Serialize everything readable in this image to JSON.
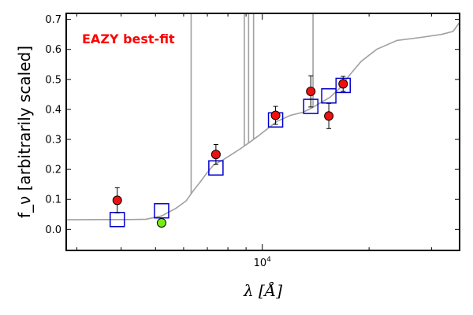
{
  "chart_data": {
    "type": "scatter",
    "title": "",
    "xlabel": "λ [Å]",
    "ylabel": "f_ν [arbitrarily scaled]",
    "xscale": "log",
    "xlim": [
      2800,
      36000
    ],
    "ylim": [
      -0.07,
      0.72
    ],
    "yticks": [
      0.0,
      0.1,
      0.2,
      0.3,
      0.4,
      0.5,
      0.6,
      0.7
    ],
    "ytick_labels": [
      "0.0",
      "0.1",
      "0.2",
      "0.3",
      "0.4",
      "0.5",
      "0.6",
      "0.7"
    ],
    "xtick_label": {
      "value": 10000,
      "label": "10",
      "exponent": "4"
    },
    "annotation": {
      "text": "EAZY best-fit",
      "color": "#ff0000"
    },
    "colors": {
      "template": "#a0a0a0",
      "model_box": "#0000cc",
      "observed": "#ee1111",
      "observed_highlight": "#77ee11"
    },
    "template_spectrum": [
      [
        2800,
        0.032
      ],
      [
        3500,
        0.033
      ],
      [
        4200,
        0.033
      ],
      [
        4700,
        0.034
      ],
      [
        5200,
        0.045
      ],
      [
        5700,
        0.07
      ],
      [
        6100,
        0.095
      ],
      [
        6400,
        0.13
      ],
      [
        6700,
        0.16
      ],
      [
        7000,
        0.19
      ],
      [
        7300,
        0.215
      ],
      [
        7700,
        0.23
      ],
      [
        8200,
        0.25
      ],
      [
        8700,
        0.27
      ],
      [
        9200,
        0.29
      ],
      [
        9700,
        0.31
      ],
      [
        10200,
        0.33
      ],
      [
        11000,
        0.36
      ],
      [
        12000,
        0.38
      ],
      [
        13000,
        0.39
      ],
      [
        13800,
        0.405
      ],
      [
        14500,
        0.42
      ],
      [
        15500,
        0.44
      ],
      [
        16500,
        0.47
      ],
      [
        17500,
        0.51
      ],
      [
        19000,
        0.56
      ],
      [
        21000,
        0.6
      ],
      [
        24000,
        0.63
      ],
      [
        28000,
        0.64
      ],
      [
        32000,
        0.65
      ],
      [
        34500,
        0.66
      ],
      [
        36000,
        0.69
      ]
    ],
    "emission_lines": [
      {
        "x": 6300,
        "top": 0.72
      },
      {
        "x": 8900,
        "top": 0.72
      },
      {
        "x": 9150,
        "top": 0.72
      },
      {
        "x": 9450,
        "top": 0.72
      },
      {
        "x": 13900,
        "top": 0.72
      }
    ],
    "model_photometry": [
      {
        "x": 3900,
        "y": 0.033
      },
      {
        "x": 5200,
        "y": 0.062
      },
      {
        "x": 7400,
        "y": 0.205
      },
      {
        "x": 10900,
        "y": 0.365
      },
      {
        "x": 13700,
        "y": 0.41
      },
      {
        "x": 15400,
        "y": 0.445
      },
      {
        "x": 16900,
        "y": 0.48
      }
    ],
    "observed_photometry": [
      {
        "x": 3900,
        "y": 0.097,
        "err": 0.042,
        "highlight": false
      },
      {
        "x": 5200,
        "y": 0.022,
        "err": 0.012,
        "highlight": true
      },
      {
        "x": 7400,
        "y": 0.25,
        "err": 0.033,
        "highlight": false
      },
      {
        "x": 10900,
        "y": 0.38,
        "err": 0.03,
        "highlight": false
      },
      {
        "x": 13700,
        "y": 0.46,
        "err": 0.052,
        "highlight": false
      },
      {
        "x": 15400,
        "y": 0.378,
        "err": 0.042,
        "highlight": false
      },
      {
        "x": 16900,
        "y": 0.485,
        "err": 0.025,
        "highlight": false
      }
    ]
  }
}
